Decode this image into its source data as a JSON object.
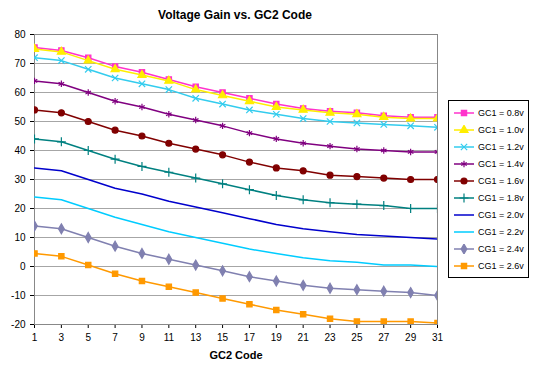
{
  "chart_data": {
    "type": "line",
    "title": "Voltage Gain vs. GC2 Code",
    "x_label": "GC2 Code",
    "x": [
      1,
      3,
      5,
      7,
      9,
      11,
      13,
      15,
      17,
      19,
      21,
      23,
      25,
      27,
      29,
      31
    ],
    "xlim": [
      1,
      31
    ],
    "xticks": [
      1,
      3,
      5,
      7,
      9,
      11,
      13,
      15,
      17,
      19,
      21,
      23,
      25,
      27,
      29,
      31
    ],
    "ylim": [
      -20,
      80
    ],
    "yticks": [
      -20,
      -10,
      0,
      10,
      20,
      30,
      40,
      50,
      60,
      70,
      80
    ],
    "grid": true,
    "legend": "right",
    "series": [
      {
        "name": "GC1 = 0.8v",
        "color": "#ff33cc",
        "marker": "square",
        "values": [
          75.5,
          74.5,
          72,
          69,
          67,
          64.5,
          62,
          60,
          58,
          56,
          54.5,
          53.5,
          53,
          52,
          51.5,
          51.5
        ]
      },
      {
        "name": "GC1 = 1.0v",
        "color": "#ffee00",
        "marker": "triangle",
        "values": [
          75,
          74,
          71,
          68,
          66,
          64,
          61,
          59,
          57,
          55,
          54,
          53,
          52.5,
          51.5,
          51,
          51
        ]
      },
      {
        "name": "GC1 = 1.2v",
        "color": "#33ccee",
        "marker": "times",
        "values": [
          72,
          71,
          68,
          65,
          63,
          61,
          58,
          56,
          54,
          52.5,
          51,
          50,
          49.5,
          49,
          48.5,
          48
        ]
      },
      {
        "name": "GC1 = 1.4v",
        "color": "#800080",
        "marker": "asterisk",
        "values": [
          64,
          63,
          60,
          57,
          55,
          52.5,
          50.5,
          48.5,
          46,
          44,
          42.5,
          41.5,
          40.5,
          40,
          39.5,
          39.5
        ]
      },
      {
        "name": "CG1 = 1.6v",
        "color": "#800000",
        "marker": "circle",
        "values": [
          54,
          53,
          50,
          47,
          45,
          42.5,
          40.5,
          38.5,
          36,
          34,
          33,
          31.5,
          31,
          30.5,
          30,
          30
        ]
      },
      {
        "name": "CG1 = 1.8v",
        "color": "#008080",
        "marker": "plus",
        "values": [
          44,
          43,
          40,
          37,
          34.5,
          32.5,
          30.5,
          28.5,
          26.5,
          24.5,
          23,
          22,
          21.5,
          21,
          20,
          20
        ]
      },
      {
        "name": "CG1 = 2.0v",
        "color": "#0000cc",
        "marker": "none",
        "values": [
          34,
          33,
          30,
          27,
          25,
          22.5,
          20.5,
          18.5,
          16.5,
          14.5,
          13,
          12,
          11,
          10.5,
          10,
          9.5
        ]
      },
      {
        "name": "CG1 = 2.2v",
        "color": "#00ccff",
        "marker": "none",
        "values": [
          24,
          23,
          20,
          17,
          14.5,
          12,
          10,
          8,
          6,
          4.5,
          3,
          2,
          1.5,
          0.5,
          0.5,
          0
        ]
      },
      {
        "name": "CG1 = 2.4v",
        "color": "#8080b0",
        "marker": "diamond",
        "values": [
          14,
          13,
          10,
          7,
          4.5,
          2.5,
          0.5,
          -1.5,
          -3.5,
          -5,
          -6.5,
          -7.5,
          -8,
          -8.5,
          -9,
          -10
        ]
      },
      {
        "name": "CG1 = 2.6v",
        "color": "#ff9900",
        "marker": "square",
        "values": [
          4.5,
          3.5,
          0.5,
          -2.5,
          -5,
          -7,
          -9,
          -11,
          -13,
          -15,
          -16.5,
          -18,
          -19,
          -19,
          -19,
          -19.5
        ]
      }
    ]
  }
}
